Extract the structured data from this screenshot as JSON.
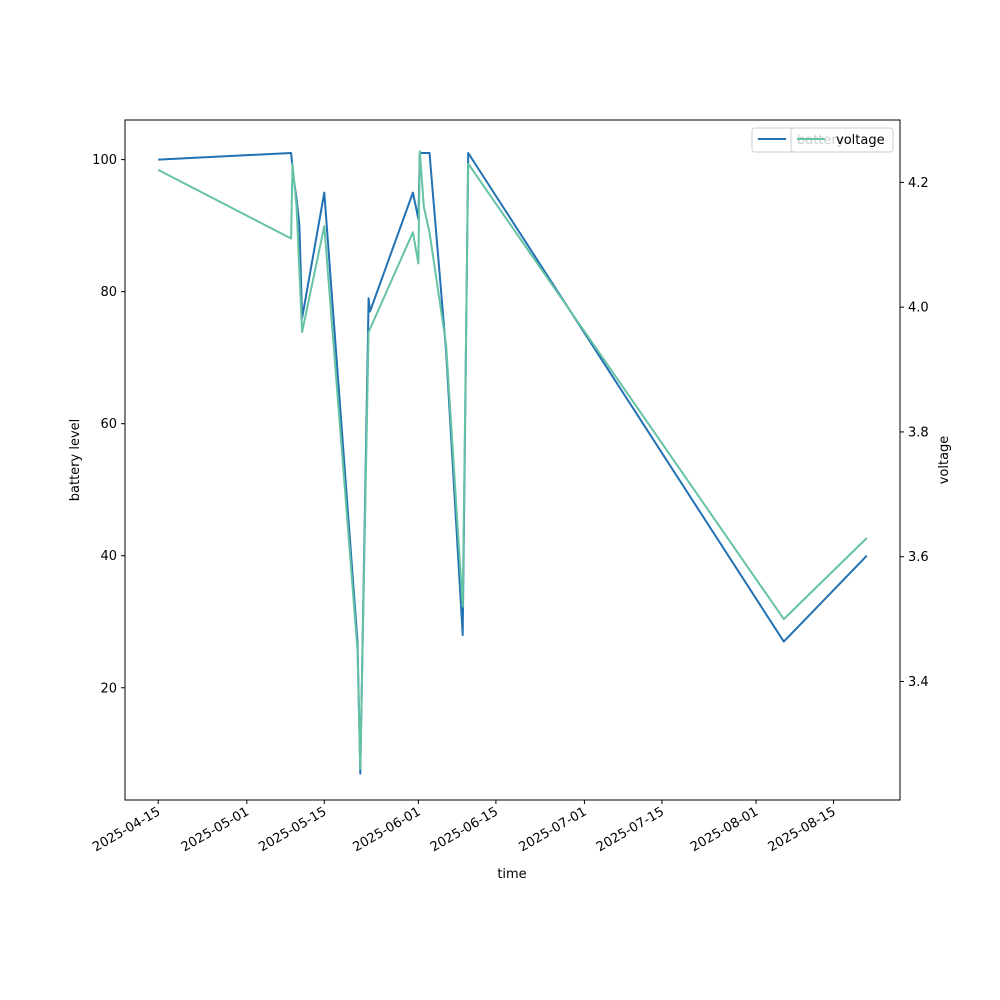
{
  "chart_data": {
    "type": "line",
    "title": "",
    "xlabel": "time",
    "ylabel": "battery level",
    "y2label": "voltage",
    "x_ticks": [
      "2025-04-15",
      "2025-05-01",
      "2025-05-15",
      "2025-06-01",
      "2025-06-15",
      "2025-07-01",
      "2025-07-15",
      "2025-08-01",
      "2025-08-15"
    ],
    "y_ticks": [
      20,
      40,
      60,
      80,
      100
    ],
    "y2_ticks": [
      3.4,
      3.6,
      3.8,
      4.0,
      4.2
    ],
    "xlim": [
      "2025-04-09",
      "2025-08-27"
    ],
    "ylim": [
      3,
      106
    ],
    "y2lim": [
      3.21,
      4.3
    ],
    "legend_primary": "battery",
    "legend_secondary": "voltage",
    "legend_position": "top-right",
    "grid": false,
    "series": [
      {
        "name": "battery",
        "axis": "left",
        "color": "#2271b2",
        "points": [
          [
            "2025-04-15",
            100
          ],
          [
            "2025-05-09",
            101
          ],
          [
            "2025-05-09 12:00",
            97
          ],
          [
            "2025-05-10",
            94
          ],
          [
            "2025-05-10 12:00",
            90
          ],
          [
            "2025-05-11",
            76
          ],
          [
            "2025-05-15",
            95
          ],
          [
            "2025-05-21",
            27
          ],
          [
            "2025-05-21 12:00",
            7
          ],
          [
            "2025-05-23",
            79
          ],
          [
            "2025-05-23 06:00",
            77
          ],
          [
            "2025-05-31",
            95
          ],
          [
            "2025-06-01",
            91
          ],
          [
            "2025-06-01 06:00",
            101
          ],
          [
            "2025-06-03",
            101
          ],
          [
            "2025-06-06",
            71
          ],
          [
            "2025-06-09",
            28
          ],
          [
            "2025-06-10",
            101
          ],
          [
            "2025-08-06",
            27
          ],
          [
            "2025-08-21",
            40
          ]
        ]
      },
      {
        "name": "voltage",
        "axis": "right",
        "color": "#66c2a5",
        "points": [
          [
            "2025-04-15",
            4.22
          ],
          [
            "2025-05-09",
            4.11
          ],
          [
            "2025-05-09 06:00",
            4.23
          ],
          [
            "2025-05-10",
            4.16
          ],
          [
            "2025-05-11",
            3.96
          ],
          [
            "2025-05-15",
            4.13
          ],
          [
            "2025-05-21",
            3.45
          ],
          [
            "2025-05-21 12:00",
            3.26
          ],
          [
            "2025-05-23",
            3.96
          ],
          [
            "2025-05-31",
            4.12
          ],
          [
            "2025-06-01",
            4.07
          ],
          [
            "2025-06-01 06:00",
            4.25
          ],
          [
            "2025-06-02",
            4.16
          ],
          [
            "2025-06-03",
            4.12
          ],
          [
            "2025-06-06",
            3.94
          ],
          [
            "2025-06-09",
            3.52
          ],
          [
            "2025-06-10",
            4.23
          ],
          [
            "2025-08-06",
            3.5
          ],
          [
            "2025-08-21",
            3.63
          ]
        ]
      }
    ]
  }
}
